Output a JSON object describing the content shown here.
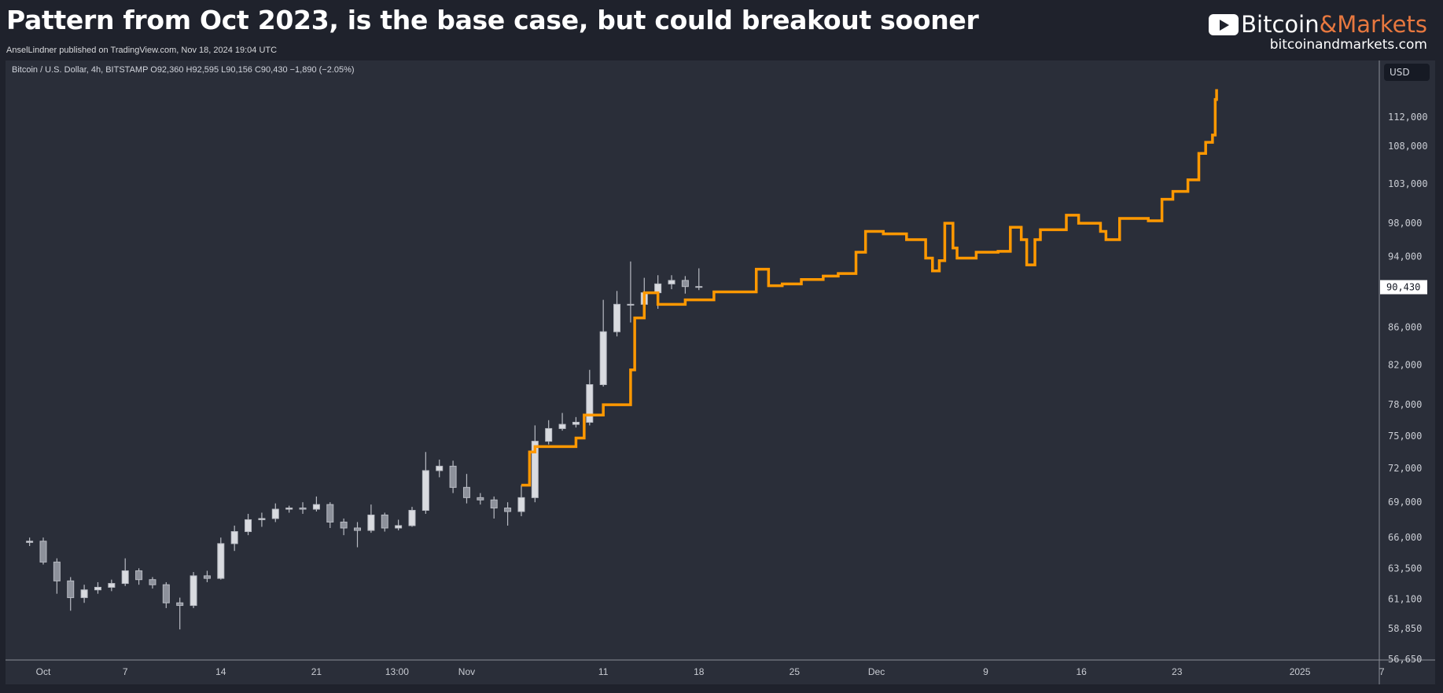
{
  "header": {
    "title": "Pattern from Oct 2023, is the base case, but could breakout sooner",
    "subtitle": "AnselLindner published on TradingView.com, Nov 18, 2024 19:04 UTC",
    "logo_left": "Bitcoin",
    "logo_right": "&Markets",
    "url": "bitcoinandmarkets.com"
  },
  "legend": "Bitcoin / U.S. Dollar, 4h, BITSTAMP  O92,360  H92,595  L90,156  C90,430  −1,890 (−2.05%)",
  "currency": "USD",
  "colors": {
    "candle": "#b8bbc3",
    "projection": "#ff9800",
    "background": "#2a2e39",
    "brand": "#e8783f"
  },
  "chart_data": {
    "type": "line",
    "title": "Pattern from Oct 2023, is the base case, but could breakout sooner",
    "x_unit": "days since Oct 1, 2024",
    "y_scale": "log",
    "ylim": [
      56000,
      117000
    ],
    "y_ticks": [
      112000,
      108000,
      103000,
      98000,
      94000,
      86000,
      82000,
      78000,
      75000,
      72000,
      69000,
      66000,
      63500,
      61100,
      58850,
      56650
    ],
    "y_tick_labels": [
      "112,000",
      "108,000",
      "103,000",
      "98,000",
      "94,000",
      "86,000",
      "82,000",
      "78,000",
      "75,000",
      "72,000",
      "69,000",
      "66,000",
      "63,500",
      "61,100",
      "58,850",
      "56,650"
    ],
    "last_price": 90430,
    "last_price_label": "90,430",
    "x_ticks": [
      {
        "d": 0,
        "label": "Oct"
      },
      {
        "d": 6,
        "label": "7"
      },
      {
        "d": 13,
        "label": "14"
      },
      {
        "d": 20,
        "label": "21"
      },
      {
        "d": 25.9,
        "label": "13:00"
      },
      {
        "d": 31,
        "label": "Nov"
      },
      {
        "d": 41,
        "label": "11"
      },
      {
        "d": 48,
        "label": "18"
      },
      {
        "d": 55,
        "label": "25"
      },
      {
        "d": 61,
        "label": "Dec"
      },
      {
        "d": 69,
        "label": "9"
      },
      {
        "d": 76,
        "label": "16"
      },
      {
        "d": 83,
        "label": "23"
      },
      {
        "d": 92,
        "label": "2025"
      },
      {
        "d": 98,
        "label": "7"
      }
    ],
    "series": [
      {
        "name": "BTCUSD candles",
        "type": "candlestick",
        "start_day": -1,
        "ohlc": [
          [
            65600,
            66000,
            65300,
            65700
          ],
          [
            65700,
            66000,
            63800,
            64000
          ],
          [
            64000,
            64300,
            61500,
            62500
          ],
          [
            62500,
            62800,
            60200,
            61200
          ],
          [
            61200,
            62200,
            60800,
            61800
          ],
          [
            61800,
            62400,
            61500,
            62000
          ],
          [
            62000,
            62600,
            61700,
            62300
          ],
          [
            62300,
            64300,
            62100,
            63300
          ],
          [
            63300,
            63500,
            62200,
            62600
          ],
          [
            62600,
            62800,
            61900,
            62200
          ],
          [
            62200,
            62400,
            60400,
            60800
          ],
          [
            60800,
            61200,
            58800,
            60600
          ],
          [
            60600,
            63200,
            60400,
            62900
          ],
          [
            62900,
            63300,
            62400,
            62700
          ],
          [
            62700,
            66000,
            62600,
            65500
          ],
          [
            65500,
            67000,
            64900,
            66500
          ],
          [
            66500,
            68000,
            66200,
            67500
          ],
          [
            67500,
            68100,
            66900,
            67600
          ],
          [
            67600,
            68900,
            67300,
            68400
          ],
          [
            68400,
            68700,
            68100,
            68500
          ],
          [
            68500,
            69000,
            68000,
            68400
          ],
          [
            68400,
            69500,
            68200,
            68800
          ],
          [
            68800,
            69000,
            66800,
            67300
          ],
          [
            67300,
            67600,
            66200,
            66800
          ],
          [
            66800,
            67300,
            65200,
            66600
          ],
          [
            66600,
            68800,
            66400,
            67900
          ],
          [
            67900,
            68100,
            66500,
            66800
          ],
          [
            66800,
            67500,
            66600,
            67000
          ],
          [
            67000,
            68600,
            66900,
            68300
          ],
          [
            68300,
            73500,
            68000,
            71800
          ],
          [
            71800,
            72800,
            71200,
            72200
          ],
          [
            72200,
            72700,
            69800,
            70300
          ],
          [
            70300,
            71500,
            68900,
            69400
          ],
          [
            69400,
            69800,
            68800,
            69200
          ],
          [
            69200,
            69500,
            67600,
            68500
          ],
          [
            68500,
            69000,
            67000,
            68200
          ],
          [
            68200,
            70500,
            67800,
            69400
          ],
          [
            69400,
            76000,
            69000,
            74500
          ],
          [
            74500,
            76500,
            74200,
            75700
          ],
          [
            75700,
            77200,
            75500,
            76100
          ],
          [
            76100,
            76800,
            75800,
            76300
          ],
          [
            76300,
            81500,
            76000,
            80000
          ],
          [
            80000,
            89000,
            79800,
            85500
          ],
          [
            85500,
            90000,
            85000,
            88500
          ],
          [
            88500,
            93400,
            86500,
            88500
          ],
          [
            88500,
            91500,
            87200,
            89800
          ],
          [
            89800,
            91800,
            88000,
            90800
          ],
          [
            90800,
            91800,
            90200,
            91200
          ],
          [
            91200,
            91700,
            89700,
            90500
          ],
          [
            90500,
            92600,
            90100,
            90430
          ]
        ]
      },
      {
        "name": "Oct 2023 pattern projection",
        "type": "step-line",
        "points": [
          [
            35.0,
            70500
          ],
          [
            35.6,
            73500
          ],
          [
            36.0,
            74000
          ],
          [
            38.0,
            74000
          ],
          [
            39.0,
            74800
          ],
          [
            39.6,
            77000
          ],
          [
            41.0,
            78000
          ],
          [
            42.7,
            78000
          ],
          [
            43.0,
            81500
          ],
          [
            43.3,
            87000
          ],
          [
            44.0,
            89800
          ],
          [
            45.0,
            88500
          ],
          [
            47.0,
            89000
          ],
          [
            49.1,
            89900
          ],
          [
            51.1,
            89900
          ],
          [
            52.2,
            92500
          ],
          [
            53.1,
            90600
          ],
          [
            54.1,
            90800
          ],
          [
            55.5,
            91300
          ],
          [
            57.1,
            91700
          ],
          [
            58.2,
            92000
          ],
          [
            59.5,
            94500
          ],
          [
            60.2,
            97000
          ],
          [
            61.5,
            96700
          ],
          [
            63.2,
            96000
          ],
          [
            64.6,
            93800
          ],
          [
            65.1,
            92300
          ],
          [
            65.6,
            93500
          ],
          [
            66.0,
            98000
          ],
          [
            66.6,
            95000
          ],
          [
            66.9,
            93800
          ],
          [
            68.3,
            94500
          ],
          [
            69.9,
            94600
          ],
          [
            70.8,
            97500
          ],
          [
            71.6,
            96000
          ],
          [
            72.0,
            93000
          ],
          [
            72.6,
            96000
          ],
          [
            73.0,
            97200
          ],
          [
            74.9,
            99000
          ],
          [
            75.8,
            98000
          ],
          [
            77.4,
            97000
          ],
          [
            77.8,
            96000
          ],
          [
            78.8,
            98600
          ],
          [
            80.9,
            98300
          ],
          [
            81.9,
            101000
          ],
          [
            82.7,
            102000
          ],
          [
            83.8,
            103500
          ],
          [
            84.6,
            107000
          ],
          [
            85.1,
            108500
          ],
          [
            85.6,
            109500
          ],
          [
            85.8,
            114500
          ],
          [
            85.9,
            116000
          ]
        ]
      }
    ]
  }
}
